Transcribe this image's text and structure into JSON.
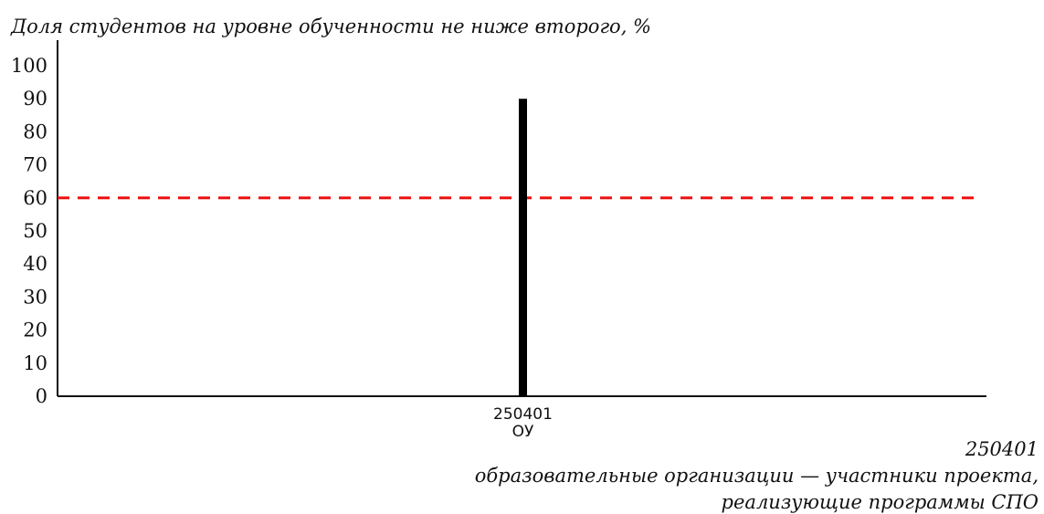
{
  "chart_data": {
    "type": "bar",
    "ylabel": "Доля студентов на уровне обученности не ниже второго, %",
    "categories": [
      "250401"
    ],
    "category_sublabels": [
      "ОУ"
    ],
    "values": [
      90
    ],
    "ylim": [
      0,
      100
    ],
    "yticks": [
      0,
      10,
      20,
      30,
      40,
      50,
      60,
      70,
      80,
      90,
      100
    ],
    "reference_line": {
      "value": 60,
      "color": "#ee1111",
      "style": "dashed"
    },
    "bar_color": "#000000",
    "grid": false,
    "legend": "none",
    "xnote": {
      "code": "250401",
      "lines": [
        "образовательные организации — участники проекта,",
        "реализующие программы СПО"
      ]
    }
  }
}
